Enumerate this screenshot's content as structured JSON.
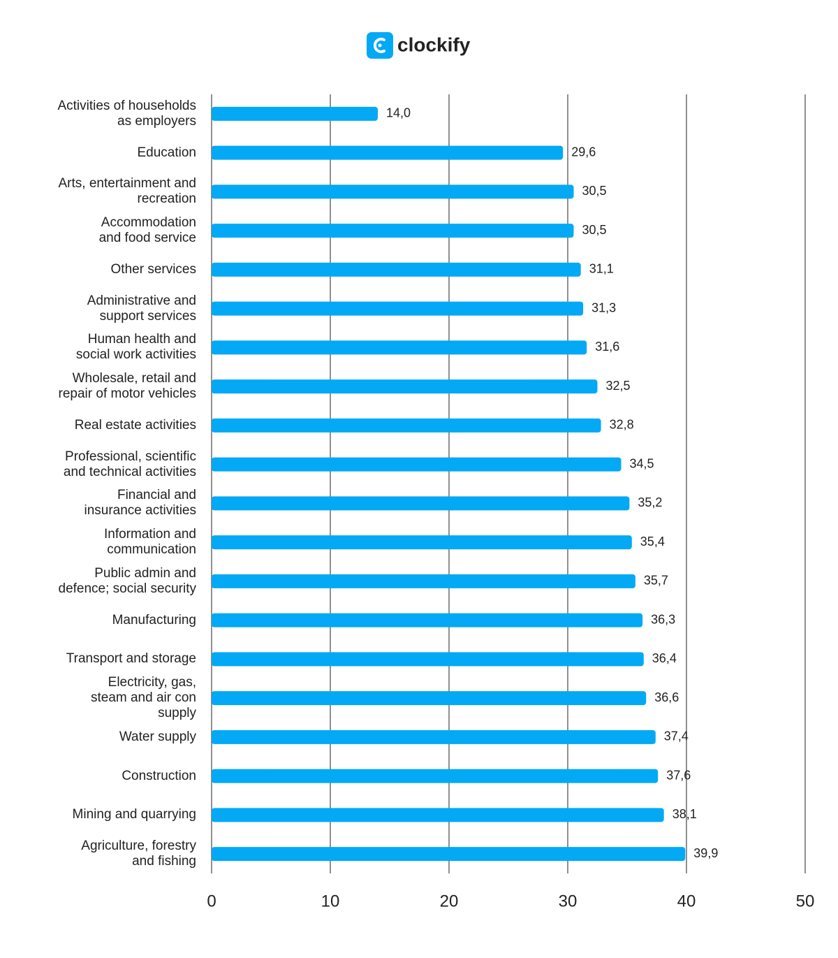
{
  "logo": "clockify",
  "chart_data": {
    "type": "barh",
    "categories": [
      "Activities of households\nas employers",
      "Education",
      "Arts, entertainment and\nrecreation",
      "Accommodation\nand food service",
      "Other services",
      "Administrative and\nsupport services",
      "Human health and\nsocial work activities",
      "Wholesale, retail and\nrepair of motor vehicles",
      "Real estate activities",
      "Professional, scientific\nand technical activities",
      "Financial and\ninsurance activities",
      "Information and\ncommunication",
      "Public admin and\ndefence; social security",
      "Manufacturing",
      "Transport and storage",
      "Electricity, gas,\nsteam and air con\nsupply",
      "Water supply",
      "Construction",
      "Mining and quarrying",
      "Agriculture, forestry\nand fishing"
    ],
    "values": [
      14.0,
      29.6,
      30.5,
      30.5,
      31.1,
      31.3,
      31.6,
      32.5,
      32.8,
      34.5,
      35.2,
      35.4,
      35.7,
      36.3,
      36.4,
      36.6,
      37.4,
      37.6,
      38.1,
      39.9
    ],
    "value_labels": [
      "14,0",
      "29,6",
      "30,5",
      "30,5",
      "31,1",
      "31,3",
      "31,6",
      "32,5",
      "32,8",
      "34,5",
      "35,2",
      "35,4",
      "35,7",
      "36,3",
      "36,4",
      "36,6",
      "37,4",
      "37,6",
      "38,1",
      "39,9"
    ],
    "color": "#03a9f4",
    "xlim": [
      0,
      50
    ],
    "xticks": [
      0,
      10,
      20,
      30,
      40,
      50
    ],
    "grid": true
  }
}
